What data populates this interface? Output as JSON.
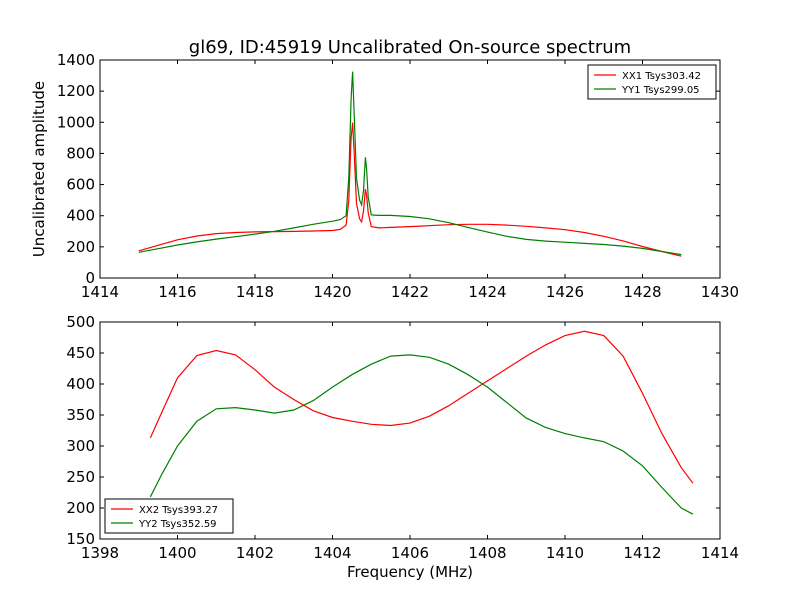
{
  "figure_title": "gl69, ID:45919 Uncalibrated On-source spectrum",
  "chart_data": [
    {
      "type": "line",
      "title": "gl69, ID:45919 Uncalibrated On-source spectrum",
      "xlabel": "",
      "ylabel": "Uncalibrated amplitude",
      "xlim": [
        1414,
        1430
      ],
      "ylim": [
        0,
        1400
      ],
      "xticks": [
        1414,
        1416,
        1418,
        1420,
        1422,
        1424,
        1426,
        1428,
        1430
      ],
      "yticks": [
        0,
        200,
        400,
        600,
        800,
        1000,
        1200,
        1400
      ],
      "grid": false,
      "legend_position": "top-right",
      "series": [
        {
          "name": "XX1 Tsys303.42",
          "color": "#ff0000",
          "x": [
            1415.0,
            1415.5,
            1416.0,
            1416.5,
            1417.0,
            1417.5,
            1418.0,
            1418.5,
            1419.0,
            1419.5,
            1420.0,
            1420.2,
            1420.35,
            1420.42,
            1420.48,
            1420.52,
            1420.56,
            1420.62,
            1420.7,
            1420.75,
            1420.8,
            1420.85,
            1420.88,
            1420.92,
            1421.0,
            1421.2,
            1421.5,
            1422.0,
            1423.0,
            1423.5,
            1424.0,
            1424.5,
            1425.0,
            1425.5,
            1426.0,
            1426.5,
            1427.0,
            1427.5,
            1428.0,
            1428.5,
            1429.0
          ],
          "y": [
            175,
            210,
            245,
            270,
            285,
            292,
            296,
            298,
            299,
            302,
            305,
            312,
            340,
            500,
            900,
            998,
            800,
            480,
            380,
            360,
            430,
            570,
            530,
            420,
            330,
            322,
            325,
            330,
            342,
            345,
            345,
            340,
            332,
            322,
            310,
            292,
            268,
            238,
            202,
            170,
            140
          ]
        },
        {
          "name": "YY1 Tsys299.05",
          "color": "#008000",
          "x": [
            1415.0,
            1415.5,
            1416.0,
            1416.5,
            1417.0,
            1417.5,
            1418.0,
            1418.5,
            1419.0,
            1419.5,
            1420.0,
            1420.2,
            1420.35,
            1420.42,
            1420.48,
            1420.52,
            1420.56,
            1420.62,
            1420.7,
            1420.75,
            1420.8,
            1420.85,
            1420.88,
            1420.92,
            1421.0,
            1421.2,
            1421.5,
            1422.0,
            1422.5,
            1423.0,
            1423.5,
            1424.0,
            1424.5,
            1425.0,
            1425.5,
            1426.0,
            1426.5,
            1427.0,
            1427.5,
            1428.0,
            1428.5,
            1429.0
          ],
          "y": [
            165,
            188,
            212,
            232,
            250,
            265,
            282,
            300,
            322,
            345,
            365,
            375,
            400,
            650,
            1150,
            1325,
            1050,
            640,
            500,
            470,
            560,
            775,
            700,
            520,
            405,
            402,
            402,
            395,
            380,
            355,
            325,
            295,
            268,
            248,
            237,
            230,
            222,
            215,
            205,
            190,
            170,
            150
          ]
        }
      ]
    },
    {
      "type": "line",
      "title": "",
      "xlabel": "Frequency (MHz)",
      "ylabel": "",
      "xlim": [
        1398,
        1414
      ],
      "ylim": [
        150,
        500
      ],
      "xticks": [
        1398,
        1400,
        1402,
        1404,
        1406,
        1408,
        1410,
        1412,
        1414
      ],
      "yticks": [
        150,
        200,
        250,
        300,
        350,
        400,
        450,
        500
      ],
      "grid": false,
      "legend_position": "bottom-left",
      "series": [
        {
          "name": "XX2 Tsys393.27",
          "color": "#ff0000",
          "x": [
            1399.3,
            1399.6,
            1400.0,
            1400.5,
            1401.0,
            1401.5,
            1402.0,
            1402.5,
            1403.0,
            1403.5,
            1404.0,
            1404.5,
            1405.0,
            1405.5,
            1406.0,
            1406.5,
            1407.0,
            1407.5,
            1408.0,
            1408.5,
            1409.0,
            1409.5,
            1410.0,
            1410.5,
            1411.0,
            1411.5,
            1412.0,
            1412.5,
            1413.0,
            1413.3
          ],
          "y": [
            313,
            355,
            410,
            446,
            454,
            447,
            423,
            395,
            375,
            357,
            346,
            340,
            335,
            333,
            337,
            348,
            365,
            385,
            405,
            425,
            445,
            463,
            478,
            485,
            478,
            445,
            385,
            320,
            265,
            240
          ]
        },
        {
          "name": "YY2 Tsys352.59",
          "color": "#008000",
          "x": [
            1399.3,
            1399.6,
            1400.0,
            1400.5,
            1401.0,
            1401.5,
            1402.0,
            1402.5,
            1403.0,
            1403.5,
            1404.0,
            1404.5,
            1405.0,
            1405.5,
            1406.0,
            1406.5,
            1407.0,
            1407.5,
            1408.0,
            1408.5,
            1409.0,
            1409.5,
            1410.0,
            1410.5,
            1411.0,
            1411.5,
            1412.0,
            1412.5,
            1413.0,
            1413.3
          ],
          "y": [
            218,
            255,
            300,
            340,
            360,
            362,
            358,
            353,
            358,
            373,
            395,
            415,
            432,
            445,
            447,
            443,
            432,
            415,
            395,
            370,
            345,
            330,
            320,
            313,
            307,
            292,
            268,
            233,
            200,
            190
          ]
        }
      ]
    }
  ]
}
